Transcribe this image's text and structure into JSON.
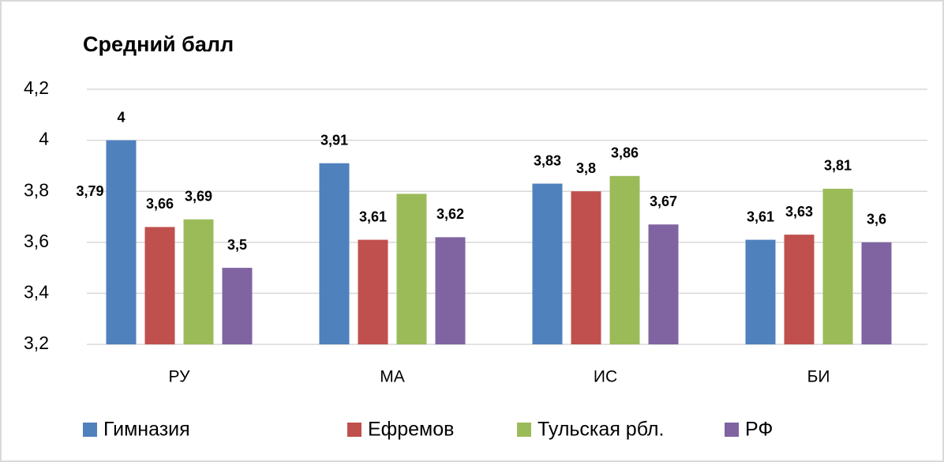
{
  "chart_data": {
    "type": "bar",
    "title": "Средний балл",
    "categories": [
      "РУ",
      "МА",
      "ИС",
      "БИ"
    ],
    "series": [
      {
        "name": "Гимназия",
        "color": "#4f81bd",
        "values": [
          4,
          3.91,
          3.83,
          3.61
        ],
        "value_labels": [
          "4",
          "3,91",
          "3,83",
          "3,61"
        ]
      },
      {
        "name": "Ефремов",
        "color": "#c0504d",
        "values": [
          3.66,
          3.61,
          3.8,
          3.63
        ],
        "value_labels": [
          "3,66",
          "3,61",
          "3,8",
          "3,63"
        ]
      },
      {
        "name": "Тульская рбл.",
        "color": "#9bbb59",
        "values": [
          3.69,
          3.79,
          3.86,
          3.81
        ],
        "value_labels": [
          "3,69",
          null,
          "3,86",
          "3,81"
        ]
      },
      {
        "name": "РФ",
        "color": "#8064a2",
        "values": [
          3.5,
          3.62,
          3.67,
          3.6
        ],
        "value_labels": [
          "3,5",
          "3,62",
          "3,67",
          "3,6"
        ]
      }
    ],
    "annotations": [
      "3,79"
    ],
    "ylim": [
      3.2,
      4.2
    ],
    "yticks": [
      {
        "value": 3.2,
        "label": "3,2"
      },
      {
        "value": 3.4,
        "label": "3,4"
      },
      {
        "value": 3.6,
        "label": "3,6"
      },
      {
        "value": 3.8,
        "label": "3,8"
      },
      4,
      {
        "value": 4.2,
        "label": "4,2"
      }
    ],
    "grid": true,
    "legend": "bottom"
  }
}
